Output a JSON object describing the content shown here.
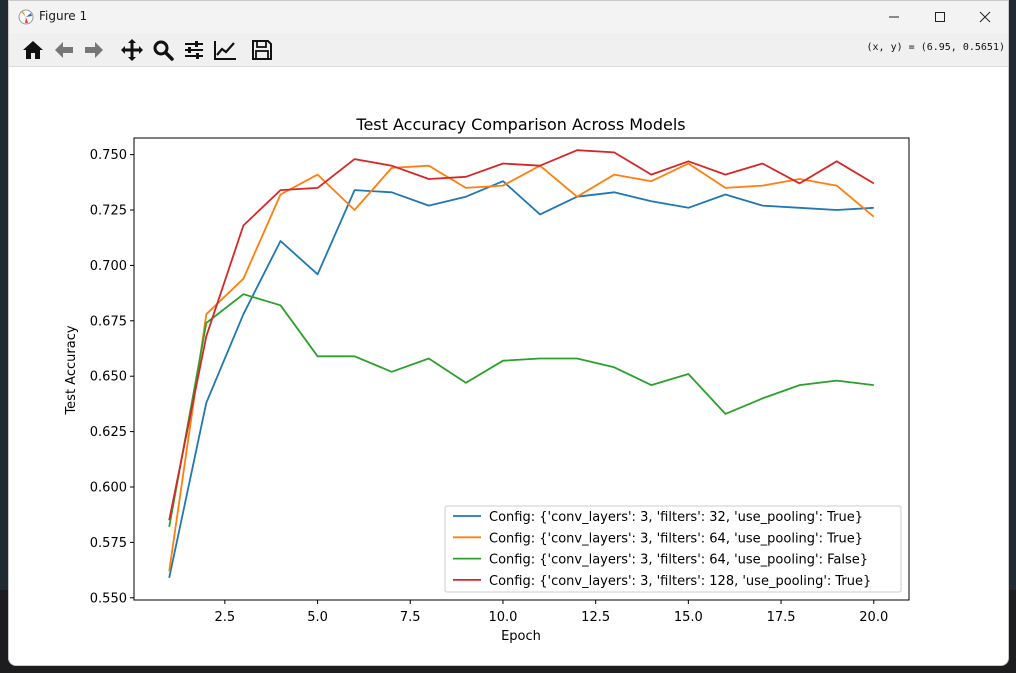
{
  "window": {
    "title": "Figure 1"
  },
  "toolbar": {
    "buttons": [
      "home-icon",
      "back-arrow-icon",
      "forward-arrow-icon",
      "pan-icon",
      "zoom-icon",
      "configure-subplots-icon",
      "edit-axis-icon",
      "save-icon"
    ],
    "coords": "(x, y) = (6.95, 0.5651)"
  },
  "chart_data": {
    "type": "line",
    "title": "Test Accuracy Comparison Across Models",
    "xlabel": "Epoch",
    "ylabel": "Test Accuracy",
    "xlim": [
      0.05,
      20.95
    ],
    "ylim": [
      0.549,
      0.7575
    ],
    "xticks": [
      2.5,
      5.0,
      7.5,
      10.0,
      12.5,
      15.0,
      17.5,
      20.0
    ],
    "xtick_labels": [
      "2.5",
      "5.0",
      "7.5",
      "10.0",
      "12.5",
      "15.0",
      "17.5",
      "20.0"
    ],
    "yticks": [
      0.55,
      0.575,
      0.6,
      0.625,
      0.65,
      0.675,
      0.7,
      0.725,
      0.75
    ],
    "ytick_labels": [
      "0.550",
      "0.575",
      "0.600",
      "0.625",
      "0.650",
      "0.675",
      "0.700",
      "0.725",
      "0.750"
    ],
    "grid": false,
    "legend_position": "lower-right",
    "x": [
      1,
      2,
      3,
      4,
      5,
      6,
      7,
      8,
      9,
      10,
      11,
      12,
      13,
      14,
      15,
      16,
      17,
      18,
      19,
      20
    ],
    "series": [
      {
        "name": "Config: {'conv_layers': 3, 'filters': 32, 'use_pooling': True}",
        "color": "#1f77b4",
        "values": [
          0.559,
          0.638,
          0.678,
          0.711,
          0.696,
          0.734,
          0.733,
          0.727,
          0.731,
          0.738,
          0.723,
          0.731,
          0.733,
          0.729,
          0.726,
          0.732,
          0.727,
          0.726,
          0.725,
          0.726
        ]
      },
      {
        "name": "Config: {'conv_layers': 3, 'filters': 64, 'use_pooling': True}",
        "color": "#ff7f0e",
        "values": [
          0.562,
          0.678,
          0.694,
          0.732,
          0.741,
          0.725,
          0.744,
          0.745,
          0.735,
          0.736,
          0.745,
          0.731,
          0.741,
          0.738,
          0.746,
          0.735,
          0.736,
          0.739,
          0.736,
          0.722
        ]
      },
      {
        "name": "Config: {'conv_layers': 3, 'filters': 64, 'use_pooling': False}",
        "color": "#2ca02c",
        "values": [
          0.582,
          0.674,
          0.687,
          0.682,
          0.659,
          0.659,
          0.652,
          0.658,
          0.647,
          0.657,
          0.658,
          0.658,
          0.654,
          0.646,
          0.651,
          0.633,
          0.64,
          0.646,
          0.648,
          0.646
        ]
      },
      {
        "name": "Config: {'conv_layers': 3, 'filters': 128, 'use_pooling': True}",
        "color": "#d62728",
        "values": [
          0.585,
          0.668,
          0.718,
          0.734,
          0.735,
          0.748,
          0.745,
          0.739,
          0.74,
          0.746,
          0.745,
          0.752,
          0.751,
          0.741,
          0.747,
          0.741,
          0.746,
          0.737,
          0.747,
          0.737
        ]
      }
    ]
  }
}
